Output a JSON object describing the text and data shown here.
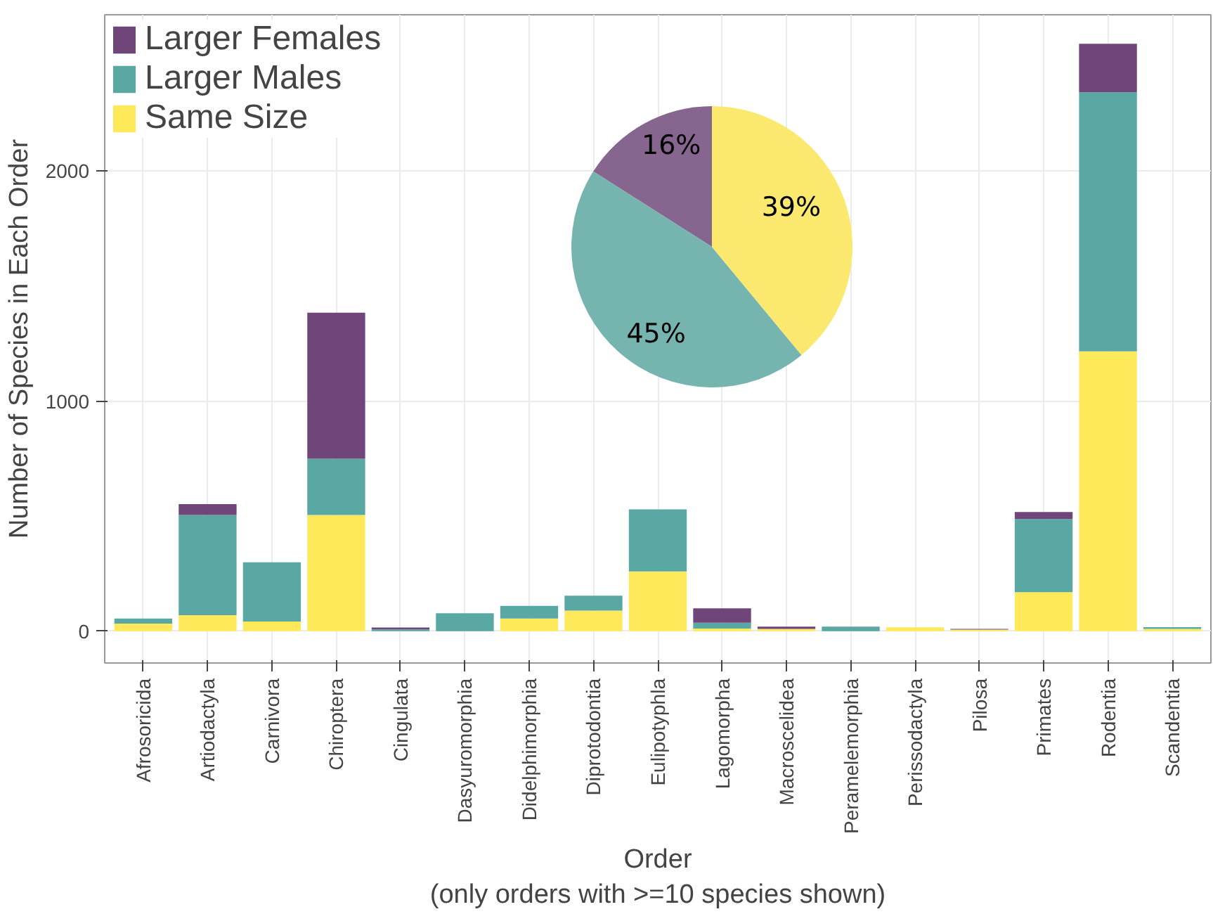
{
  "chart_data": [
    {
      "type": "bar",
      "stacked": true,
      "xlabel": "Order\n(only orders with >=10 species shown)",
      "ylabel": "Number of Species in Each Order",
      "categories": [
        "Afrosoricida",
        "Artiodactyla",
        "Carnivora",
        "Chiroptera",
        "Cingulata",
        "Dasyuromorphia",
        "Didelphimorphia",
        "Diprotodontia",
        "Eulipotyphla",
        "Lagomorpha",
        "Macroscelidea",
        "Peramelemorphia",
        "Perissodactyla",
        "Pilosa",
        "Primates",
        "Rodentia",
        "Scandentia"
      ],
      "series": [
        {
          "name": "Same Size",
          "color": "#fde95a",
          "values": [
            33,
            70,
            42,
            505,
            0,
            0,
            55,
            90,
            260,
            12,
            10,
            0,
            17,
            7,
            170,
            1217,
            10
          ]
        },
        {
          "name": "Larger Males",
          "color": "#5aa8a4",
          "values": [
            22,
            435,
            258,
            245,
            8,
            78,
            55,
            65,
            270,
            25,
            0,
            20,
            0,
            0,
            318,
            1126,
            8
          ]
        },
        {
          "name": "Larger Females",
          "color": "#70457a",
          "values": [
            0,
            48,
            0,
            635,
            8,
            0,
            0,
            0,
            0,
            63,
            10,
            0,
            0,
            3,
            30,
            211,
            0
          ]
        }
      ],
      "ylim": [
        -138,
        2680
      ],
      "yticks": [
        0,
        1000,
        2000
      ],
      "grid": true,
      "legend": "top left"
    },
    {
      "type": "pie",
      "categories": [
        null,
        null,
        null
      ],
      "values": [
        16,
        45,
        39
      ],
      "value_labels": [
        "16%",
        "45%",
        "39%"
      ],
      "colors": [
        "#86668f",
        "#76b4b0",
        "#fbe96f"
      ]
    }
  ]
}
